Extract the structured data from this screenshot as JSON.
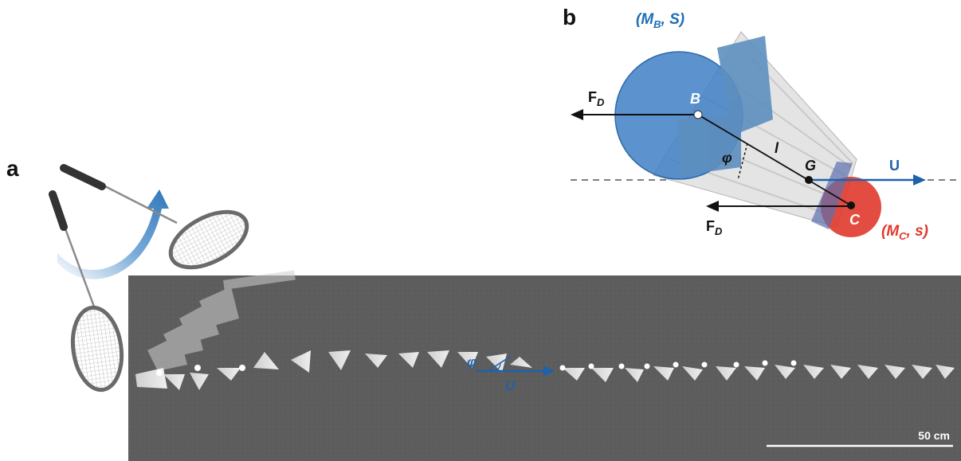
{
  "panels": {
    "a": "a",
    "b": "b"
  },
  "diagram_b": {
    "base_label": "(M",
    "base_sub": "B",
    "base_rest": ", S)",
    "cork_label": "(M",
    "cork_sub": "C",
    "cork_rest": ", s)",
    "point_b": "B",
    "point_c": "C",
    "point_g": "G",
    "length": "l",
    "angle": "φ",
    "force": "F",
    "force_sub": "D",
    "velocity": "U"
  },
  "photo_a": {
    "angle": "φ",
    "velocity": "U",
    "scale_bar": "50 cm"
  },
  "colors": {
    "blue": "#3f7fc4",
    "blue_text": "#1f6fb5",
    "red": "#e03a2c",
    "photo_bg": "#5e5e5e",
    "arrow_blue": "#1f62a8"
  }
}
